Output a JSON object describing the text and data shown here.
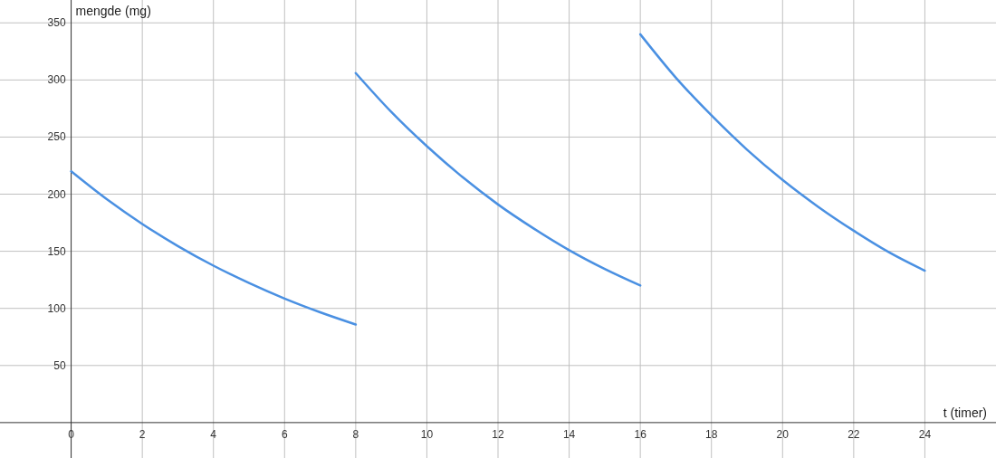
{
  "chart_data": {
    "type": "line",
    "xlabel": "t (timer)",
    "ylabel": "mengde (mg)",
    "xlim": [
      -2,
      26
    ],
    "ylim": [
      -31,
      370
    ],
    "xticks": [
      0,
      2,
      4,
      6,
      8,
      10,
      12,
      14,
      16,
      18,
      20,
      22,
      24
    ],
    "yticks": [
      50,
      100,
      150,
      200,
      250,
      300,
      350
    ],
    "grid": true,
    "marker": "none",
    "line_style": "solid",
    "series": [
      {
        "color": "#4a90e2",
        "x": [
          0,
          1,
          2,
          3,
          4,
          5,
          6,
          7,
          8
        ],
        "values": [
          220,
          195.6,
          173.9,
          154.6,
          137.4,
          122.2,
          108.6,
          96.6,
          85.9
        ]
      },
      {
        "color": "#4a90e2",
        "x": [
          8,
          9,
          10,
          11,
          12,
          13,
          14,
          15,
          16
        ],
        "values": [
          306,
          272,
          242,
          215,
          191,
          170,
          151,
          134.5,
          120
        ]
      },
      {
        "color": "#4a90e2",
        "x": [
          16,
          17,
          18,
          19,
          20,
          21,
          22,
          23,
          24
        ],
        "values": [
          340,
          302,
          269,
          239,
          212.5,
          189,
          168,
          149,
          133
        ]
      }
    ]
  }
}
